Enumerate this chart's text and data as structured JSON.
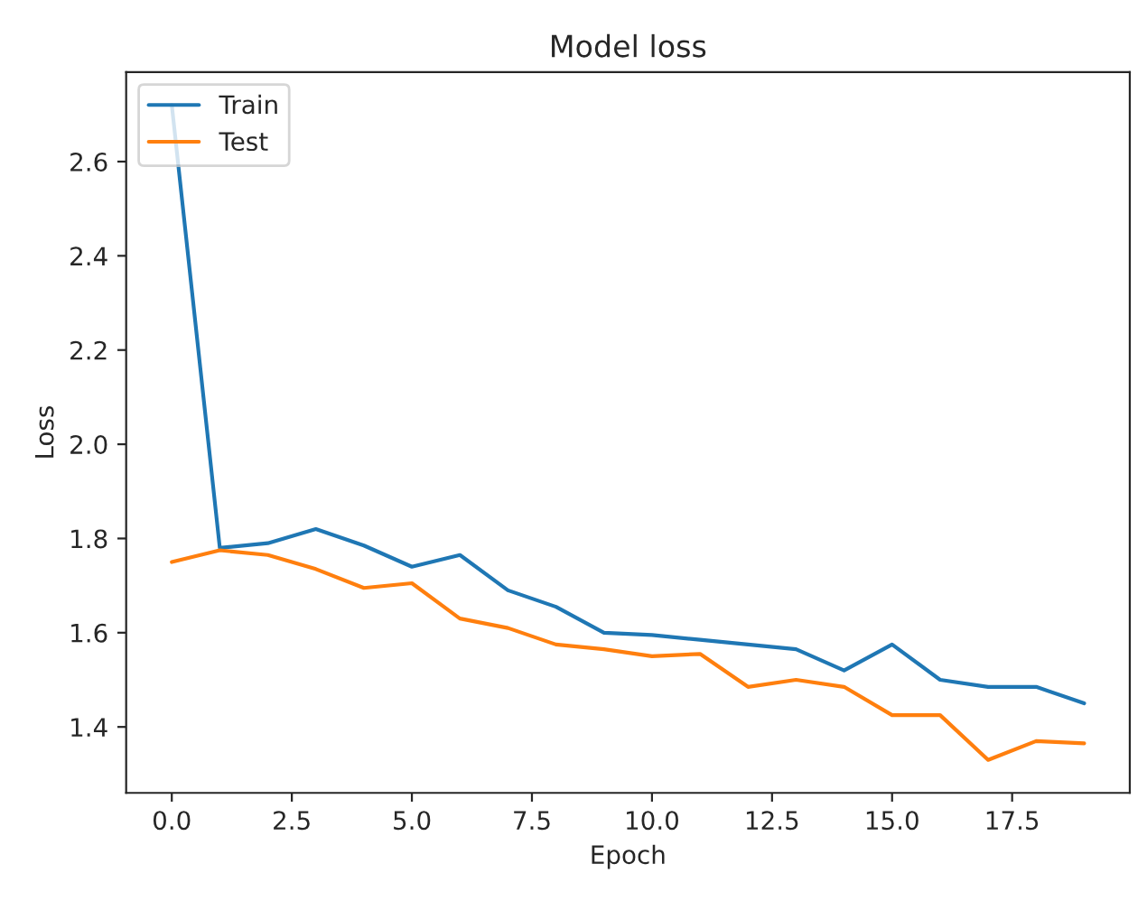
{
  "chart_data": {
    "type": "line",
    "title": "Model loss",
    "xlabel": "Epoch",
    "ylabel": "Loss",
    "x": [
      0,
      1,
      2,
      3,
      4,
      5,
      6,
      7,
      8,
      9,
      10,
      11,
      12,
      13,
      14,
      15,
      16,
      17,
      18,
      19
    ],
    "series": [
      {
        "name": "Train",
        "color": "#1f77b4",
        "values": [
          2.72,
          1.78,
          1.79,
          1.82,
          1.785,
          1.74,
          1.765,
          1.69,
          1.655,
          1.6,
          1.595,
          1.585,
          1.575,
          1.565,
          1.52,
          1.575,
          1.5,
          1.485,
          1.485,
          1.45
        ]
      },
      {
        "name": "Test",
        "color": "#ff7f0e",
        "values": [
          1.75,
          1.775,
          1.765,
          1.735,
          1.695,
          1.705,
          1.63,
          1.61,
          1.575,
          1.565,
          1.55,
          1.555,
          1.485,
          1.5,
          1.485,
          1.425,
          1.425,
          1.33,
          1.37,
          1.365
        ]
      }
    ],
    "xlim": [
      -0.95,
      19.95
    ],
    "ylim": [
      1.26,
      2.79
    ],
    "xticks": [
      {
        "value": 0,
        "label": "0.0"
      },
      {
        "value": 2.5,
        "label": "2.5"
      },
      {
        "value": 5,
        "label": "5.0"
      },
      {
        "value": 7.5,
        "label": "7.5"
      },
      {
        "value": 10,
        "label": "10.0"
      },
      {
        "value": 12.5,
        "label": "12.5"
      },
      {
        "value": 15,
        "label": "15.0"
      },
      {
        "value": 17.5,
        "label": "17.5"
      }
    ],
    "yticks": [
      {
        "value": 1.4,
        "label": "1.4"
      },
      {
        "value": 1.6,
        "label": "1.6"
      },
      {
        "value": 1.8,
        "label": "1.8"
      },
      {
        "value": 2.0,
        "label": "2.0"
      },
      {
        "value": 2.2,
        "label": "2.2"
      },
      {
        "value": 2.4,
        "label": "2.4"
      },
      {
        "value": 2.6,
        "label": "2.6"
      }
    ],
    "legend": "upper left",
    "grid": false
  }
}
